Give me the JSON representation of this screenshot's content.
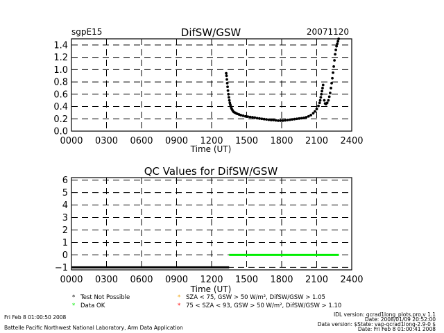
{
  "site": "sgpE15",
  "date": "20071120",
  "chart_data": [
    {
      "type": "scatter",
      "title": "DifSW/GSW",
      "xlabel": "Time (UT)",
      "ylabel": "",
      "xlim": [
        0,
        2400
      ],
      "ylim": [
        0,
        1.5
      ],
      "grid": true,
      "x_ticks": [
        0,
        300,
        600,
        900,
        1200,
        1500,
        1800,
        2100,
        2400
      ],
      "x_tick_labels": [
        "0000",
        "0300",
        "0600",
        "0900",
        "1200",
        "1500",
        "1800",
        "2100",
        "2400"
      ],
      "y_ticks": [
        0,
        0.2,
        0.4,
        0.6,
        0.8,
        1.0,
        1.2,
        1.4
      ],
      "y_tick_labels": [
        "0.0",
        "0.2",
        "0.4",
        "0.6",
        "0.8",
        "1.0",
        "1.2",
        "1.4"
      ],
      "series": [
        {
          "color": "#000000",
          "points": [
            [
              1325,
              0.94
            ],
            [
              1328,
              0.9
            ],
            [
              1331,
              0.84
            ],
            [
              1334,
              0.78
            ],
            [
              1337,
              0.72
            ],
            [
              1340,
              0.66
            ],
            [
              1344,
              0.6
            ],
            [
              1348,
              0.55
            ],
            [
              1352,
              0.5
            ],
            [
              1356,
              0.46
            ],
            [
              1360,
              0.43
            ],
            [
              1365,
              0.4
            ],
            [
              1370,
              0.37
            ],
            [
              1376,
              0.35
            ],
            [
              1382,
              0.33
            ],
            [
              1390,
              0.31
            ],
            [
              1400,
              0.3
            ],
            [
              1410,
              0.29
            ],
            [
              1420,
              0.28
            ],
            [
              1435,
              0.27
            ],
            [
              1450,
              0.26
            ],
            [
              1470,
              0.25
            ],
            [
              1490,
              0.24
            ],
            [
              1510,
              0.235
            ],
            [
              1530,
              0.23
            ],
            [
              1550,
              0.225
            ],
            [
              1570,
              0.22
            ],
            [
              1590,
              0.21
            ],
            [
              1610,
              0.205
            ],
            [
              1630,
              0.2
            ],
            [
              1650,
              0.195
            ],
            [
              1670,
              0.19
            ],
            [
              1690,
              0.185
            ],
            [
              1710,
              0.18
            ],
            [
              1730,
              0.18
            ],
            [
              1750,
              0.175
            ],
            [
              1770,
              0.17
            ],
            [
              1790,
              0.17
            ],
            [
              1810,
              0.17
            ],
            [
              1830,
              0.175
            ],
            [
              1850,
              0.18
            ],
            [
              1870,
              0.185
            ],
            [
              1890,
              0.19
            ],
            [
              1910,
              0.195
            ],
            [
              1930,
              0.2
            ],
            [
              1950,
              0.205
            ],
            [
              1970,
              0.21
            ],
            [
              1990,
              0.215
            ],
            [
              2010,
              0.225
            ],
            [
              2030,
              0.24
            ],
            [
              2050,
              0.26
            ],
            [
              2070,
              0.29
            ],
            [
              2085,
              0.32
            ],
            [
              2100,
              0.36
            ],
            [
              2115,
              0.41
            ],
            [
              2125,
              0.46
            ],
            [
              2130,
              0.5
            ],
            [
              2135,
              0.55
            ],
            [
              2140,
              0.6
            ],
            [
              2145,
              0.65
            ],
            [
              2150,
              0.7
            ],
            [
              2155,
              0.75
            ],
            [
              2165,
              0.5
            ],
            [
              2172,
              0.45
            ],
            [
              2180,
              0.44
            ],
            [
              2190,
              0.46
            ],
            [
              2200,
              0.5
            ],
            [
              2208,
              0.56
            ],
            [
              2215,
              0.62
            ],
            [
              2222,
              0.7
            ],
            [
              2228,
              0.78
            ],
            [
              2234,
              0.86
            ],
            [
              2240,
              0.95
            ],
            [
              2246,
              1.05
            ],
            [
              2252,
              1.15
            ],
            [
              2258,
              1.25
            ],
            [
              2264,
              1.32
            ],
            [
              2270,
              1.38
            ],
            [
              2276,
              1.42
            ],
            [
              2282,
              1.46
            ],
            [
              2288,
              1.5
            ]
          ]
        }
      ]
    },
    {
      "type": "scatter",
      "title": "QC Values for DifSW/GSW",
      "xlabel": "Time (UT)",
      "ylabel": "",
      "xlim": [
        0,
        2400
      ],
      "ylim": [
        -1.2,
        6.2
      ],
      "grid": true,
      "x_ticks": [
        0,
        300,
        600,
        900,
        1200,
        1500,
        1800,
        2100,
        2400
      ],
      "x_tick_labels": [
        "0000",
        "0300",
        "0600",
        "0900",
        "1200",
        "1500",
        "1800",
        "2100",
        "2400"
      ],
      "y_ticks": [
        -1,
        0,
        1,
        2,
        3,
        4,
        5,
        6
      ],
      "y_tick_labels": [
        "−1",
        "0",
        "1",
        "2",
        "3",
        "4",
        "5",
        "6"
      ],
      "series": [
        {
          "color": "#000000",
          "segments": [
            [
              0,
              1350,
              -1
            ]
          ]
        },
        {
          "color": "#00ee00",
          "segments": [
            [
              1350,
              2290,
              0
            ]
          ]
        }
      ]
    }
  ],
  "legend": [
    {
      "marker": "*",
      "color": "#000000",
      "text": "Test Not Possible"
    },
    {
      "marker": "*",
      "color": "#00ee00",
      "text": "Data OK"
    },
    {
      "marker": "*",
      "color": "#f0a000",
      "text": "SZA < 75, GSW > 50 W/m², DifSW/GSW > 1.05"
    },
    {
      "marker": "*",
      "color": "#ff0000",
      "text": "75 < SZA < 93, GSW > 50 W/m², DifSW/GSW > 1.10"
    }
  ],
  "footer": {
    "run_date": "Fri Feb  8 01:00:50 2008",
    "lab": "Battelle Pacific Northwest National Laboratory, Arm Data Application",
    "idl_version": "IDL version: qcrad1long_plots.pro,v 1.1",
    "idl_date": "Date: 2008/01/09 20:52:00",
    "data_version": "Data version: $State: vap-qcrad1long-2.9-0 $",
    "data_date": "Date: Fri Feb  8 01:00:41 2008"
  }
}
